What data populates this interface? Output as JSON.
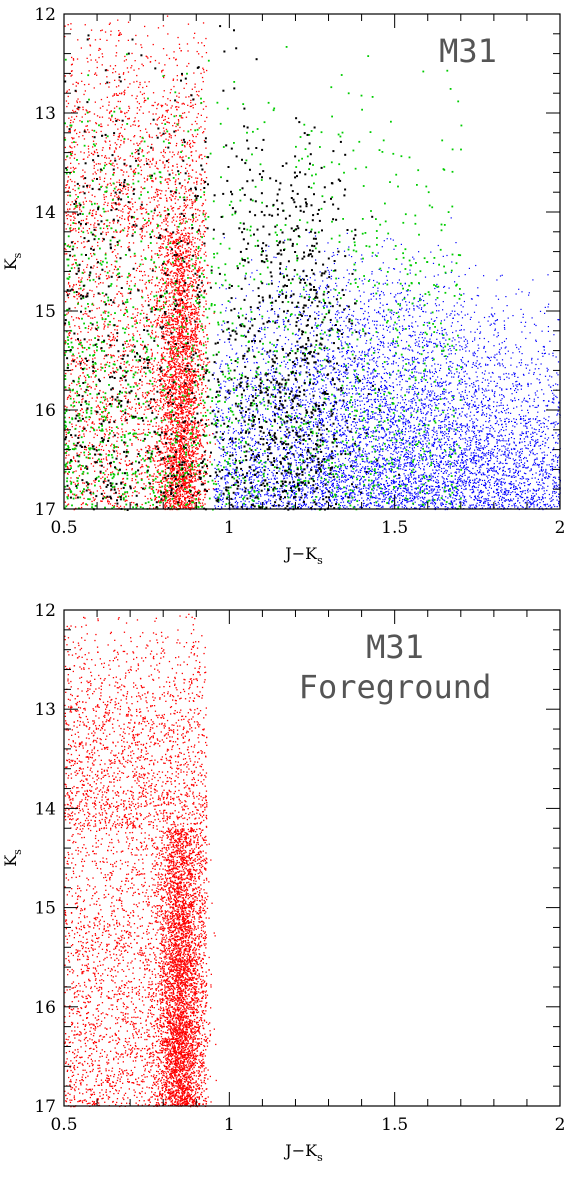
{
  "chart_data": [
    {
      "type": "scatter",
      "title_lines": [
        "M31"
      ],
      "xlabel_main": "J−K",
      "xlabel_sub": "s",
      "ylabel_main": "K",
      "ylabel_sub": "s",
      "xlim": [
        0.5,
        2.0
      ],
      "ylim": [
        17,
        12
      ],
      "y_inverted": true,
      "x_ticks": [
        {
          "value": 0.5,
          "label": "0.5"
        },
        {
          "value": 1.0,
          "label": "1"
        },
        {
          "value": 1.5,
          "label": "1.5"
        },
        {
          "value": 2.0,
          "label": "2"
        }
      ],
      "y_ticks": [
        {
          "value": 12,
          "label": "12"
        },
        {
          "value": 13,
          "label": "13"
        },
        {
          "value": 14,
          "label": "14"
        },
        {
          "value": 15,
          "label": "15"
        },
        {
          "value": 16,
          "label": "16"
        },
        {
          "value": 17,
          "label": "17"
        }
      ],
      "grid": false,
      "series_colors": {
        "foreground": "#ff0000",
        "m31_red": "#0000ff",
        "green": "#00cc00",
        "black": "#000000"
      }
    },
    {
      "type": "scatter",
      "title_lines": [
        "M31",
        "Foreground"
      ],
      "xlabel_main": "J−K",
      "xlabel_sub": "s",
      "ylabel_main": "K",
      "ylabel_sub": "s",
      "xlim": [
        0.5,
        2.0
      ],
      "ylim": [
        17,
        12
      ],
      "y_inverted": true,
      "x_ticks": [
        {
          "value": 0.5,
          "label": "0.5"
        },
        {
          "value": 1.0,
          "label": "1"
        },
        {
          "value": 1.5,
          "label": "1.5"
        },
        {
          "value": 2.0,
          "label": "2"
        }
      ],
      "y_ticks": [
        {
          "value": 12,
          "label": "12"
        },
        {
          "value": 13,
          "label": "13"
        },
        {
          "value": 14,
          "label": "14"
        },
        {
          "value": 15,
          "label": "15"
        },
        {
          "value": 16,
          "label": "16"
        },
        {
          "value": 17,
          "label": "17"
        }
      ],
      "grid": false,
      "series_colors": {
        "foreground": "#ff0000"
      }
    }
  ]
}
